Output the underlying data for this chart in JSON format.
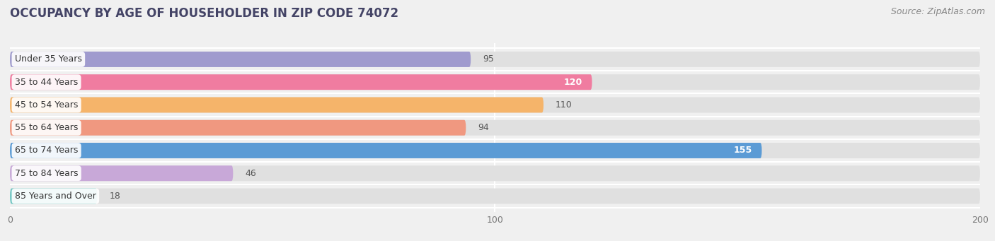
{
  "title": "OCCUPANCY BY AGE OF HOUSEHOLDER IN ZIP CODE 74072",
  "source": "Source: ZipAtlas.com",
  "categories": [
    "Under 35 Years",
    "35 to 44 Years",
    "45 to 54 Years",
    "55 to 64 Years",
    "65 to 74 Years",
    "75 to 84 Years",
    "85 Years and Over"
  ],
  "values": [
    95,
    120,
    110,
    94,
    155,
    46,
    18
  ],
  "bar_colors": [
    "#a09bce",
    "#f07ca0",
    "#f5b46a",
    "#f09880",
    "#5b9bd5",
    "#c8a8d8",
    "#72c8c4"
  ],
  "xlim_min": 0,
  "xlim_max": 200,
  "xticks": [
    0,
    100,
    200
  ],
  "background_color": "#f0f0f0",
  "bar_bg_color": "#e0e0e0",
  "title_fontsize": 12,
  "label_fontsize": 9,
  "value_fontsize": 9,
  "source_fontsize": 9,
  "value_inside_threshold": 120,
  "label_bg_color": "#ffffff"
}
